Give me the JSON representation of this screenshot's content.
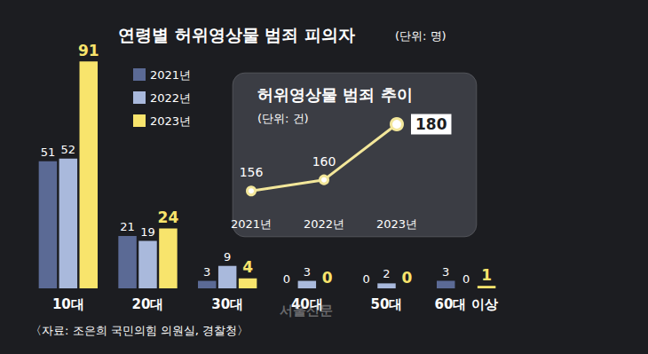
{
  "chart_data": [
    {
      "type": "bar",
      "title": "연령별 허위영상물 범죄 피의자",
      "subtitle": "(단위: 명)",
      "categories": [
        "10대",
        "20대",
        "30대",
        "40대",
        "50대",
        "60대 이상"
      ],
      "series": [
        {
          "name": "2021년",
          "color": "#5b6a95",
          "values": [
            51,
            21,
            3,
            0,
            0,
            3
          ]
        },
        {
          "name": "2022년",
          "color": "#a9b9dc",
          "values": [
            52,
            19,
            9,
            3,
            2,
            0
          ]
        },
        {
          "name": "2023년",
          "color": "#f8e46c",
          "values": [
            91,
            24,
            4,
            0,
            0,
            1
          ]
        }
      ],
      "ylim": [
        0,
        95
      ],
      "legend": "upper left",
      "data_labels": true,
      "tick_labels": "x",
      "grid": false,
      "annotations": [
        "〈자료: 조은희 국민의힘 의원실, 경찰청〉",
        "서울신문"
      ]
    },
    {
      "type": "line",
      "title": "허위영상물 범죄 추이",
      "subtitle": "(단위: 건)",
      "categories": [
        "2021년",
        "2022년",
        "2023년"
      ],
      "values": [
        156,
        160,
        180
      ],
      "color": "#f3e79a",
      "marker": "circle",
      "ylim": [
        150,
        180
      ],
      "data_labels": true,
      "tick_labels": "x",
      "grid": false
    }
  ]
}
